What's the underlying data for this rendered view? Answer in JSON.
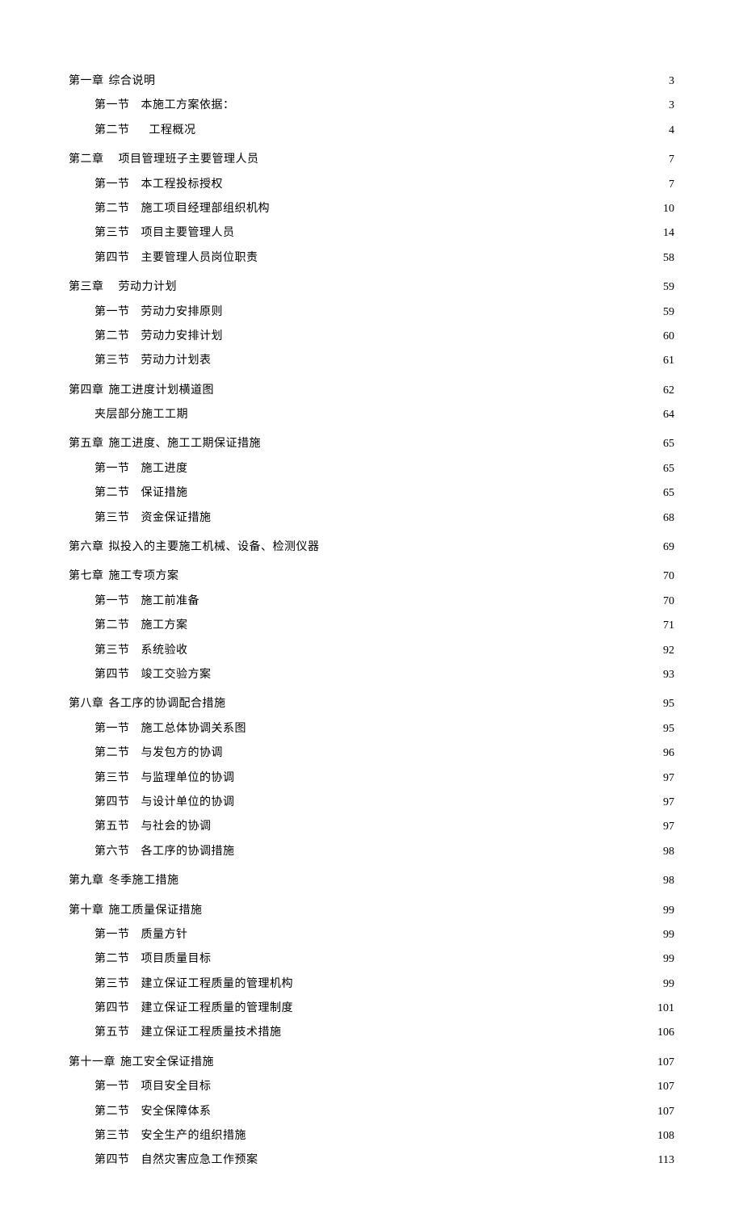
{
  "toc": [
    {
      "chapter": "第一章",
      "title": "综合说明",
      "page": "3",
      "sections": [
        {
          "label": "第一节",
          "title": "本施工方案依据：",
          "page": "3"
        },
        {
          "label": "第二节",
          "title": "工程概况",
          "page": "4",
          "wide": true
        }
      ]
    },
    {
      "chapter": "第二章",
      "title": "项目管理班子主要管理人员",
      "page": "7",
      "wide": true,
      "sections": [
        {
          "label": "第一节",
          "title": "本工程投标授权",
          "page": "7"
        },
        {
          "label": "第二节",
          "title": "施工项目经理部组织机构",
          "page": "10"
        },
        {
          "label": "第三节",
          "title": "项目主要管理人员",
          "page": "14"
        },
        {
          "label": "第四节",
          "title": "主要管理人员岗位职责",
          "page": "58"
        }
      ]
    },
    {
      "chapter": "第三章",
      "title": "劳动力计划",
      "page": "59",
      "wide": true,
      "sections": [
        {
          "label": "第一节",
          "title": "劳动力安排原则",
          "page": "59"
        },
        {
          "label": "第二节",
          "title": "劳动力安排计划",
          "page": "60"
        },
        {
          "label": "第三节",
          "title": "劳动力计划表",
          "page": "61"
        }
      ]
    },
    {
      "chapter": "第四章",
      "title": "施工进度计划横道图",
      "page": "62",
      "sections": [
        {
          "label": "",
          "title": "夹层部分施工工期",
          "page": "64",
          "noLabel": true
        }
      ]
    },
    {
      "chapter": "第五章",
      "title": "施工进度、施工工期保证措施",
      "page": "65",
      "sections": [
        {
          "label": "第一节",
          "title": "施工进度",
          "page": "65"
        },
        {
          "label": "第二节",
          "title": "保证措施",
          "page": "65"
        },
        {
          "label": "第三节",
          "title": "资金保证措施",
          "page": "68"
        }
      ]
    },
    {
      "chapter": "第六章",
      "title": "拟投入的主要施工机械、设备、检测仪器",
      "page": "69",
      "sections": []
    },
    {
      "chapter": "第七章",
      "title": "施工专项方案",
      "page": "70",
      "sections": [
        {
          "label": "第一节",
          "title": "施工前准备",
          "page": "70"
        },
        {
          "label": "第二节",
          "title": "施工方案",
          "page": "71"
        },
        {
          "label": "第三节",
          "title": "系统验收",
          "page": "92"
        },
        {
          "label": "第四节",
          "title": "竣工交验方案",
          "page": "93"
        }
      ]
    },
    {
      "chapter": "第八章",
      "title": "各工序的协调配合措施",
      "page": "95",
      "sections": [
        {
          "label": "第一节",
          "title": "施工总体协调关系图",
          "page": "95"
        },
        {
          "label": "第二节",
          "title": "与发包方的协调",
          "page": "96"
        },
        {
          "label": "第三节",
          "title": "与监理单位的协调",
          "page": "97"
        },
        {
          "label": "第四节",
          "title": "与设计单位的协调",
          "page": "97"
        },
        {
          "label": "第五节",
          "title": "与社会的协调",
          "page": "97"
        },
        {
          "label": "第六节",
          "title": "各工序的协调措施",
          "page": "98"
        }
      ]
    },
    {
      "chapter": "第九章",
      "title": "冬季施工措施",
      "page": "98",
      "sections": []
    },
    {
      "chapter": "第十章",
      "title": "施工质量保证措施",
      "page": "99",
      "sections": [
        {
          "label": "第一节",
          "title": "质量方针",
          "page": "99"
        },
        {
          "label": "第二节",
          "title": "项目质量目标",
          "page": "99"
        },
        {
          "label": "第三节",
          "title": "建立保证工程质量的管理机构",
          "page": "99"
        },
        {
          "label": "第四节",
          "title": "建立保证工程质量的管理制度",
          "page": "101"
        },
        {
          "label": "第五节",
          "title": "建立保证工程质量技术措施",
          "page": "106"
        }
      ]
    },
    {
      "chapter": "第十一章",
      "title": "施工安全保证措施",
      "page": "107",
      "sections": [
        {
          "label": "第一节",
          "title": "项目安全目标",
          "page": "107"
        },
        {
          "label": "第二节",
          "title": "安全保障体系",
          "page": "107"
        },
        {
          "label": "第三节",
          "title": "安全生产的组织措施",
          "page": "108"
        },
        {
          "label": "第四节",
          "title": "自然灾害应急工作预案",
          "page": "113"
        }
      ]
    }
  ]
}
